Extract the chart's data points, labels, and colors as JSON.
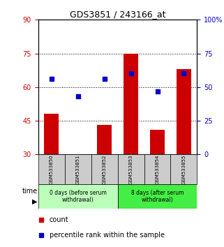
{
  "title": "GDS3851 / 243166_at",
  "samples": [
    "GSM533850",
    "GSM533851",
    "GSM533852",
    "GSM533853",
    "GSM533854",
    "GSM533855"
  ],
  "count_values": [
    48,
    30,
    43,
    75,
    41,
    68
  ],
  "percentile_values": [
    56,
    43,
    56,
    60,
    47,
    60
  ],
  "left_ylim": [
    30,
    90
  ],
  "left_yticks": [
    30,
    45,
    60,
    75,
    90
  ],
  "right_ylim": [
    0,
    100
  ],
  "right_yticks": [
    0,
    25,
    50,
    75,
    100
  ],
  "right_yticklabels": [
    "0",
    "25",
    "50",
    "75",
    "100%"
  ],
  "bar_color": "#cc0000",
  "dot_color": "#0000cc",
  "bar_width": 0.55,
  "hlines": [
    45,
    60,
    75
  ],
  "group1_label": "0 days (before serum\nwithdrawal)",
  "group2_label": "8 days (after serum\nwithdrawal)",
  "legend_count": "count",
  "legend_pct": "percentile rank within the sample",
  "time_label": "time",
  "left_axis_color": "#cc0000",
  "right_axis_color": "#0000cc",
  "bg_label_group1": "#bbffbb",
  "bg_label_group2": "#44ee44",
  "bg_sample_labels": "#cccccc",
  "title_fontsize": 9,
  "tick_fontsize": 7,
  "sample_fontsize": 5,
  "group_fontsize": 5.5
}
